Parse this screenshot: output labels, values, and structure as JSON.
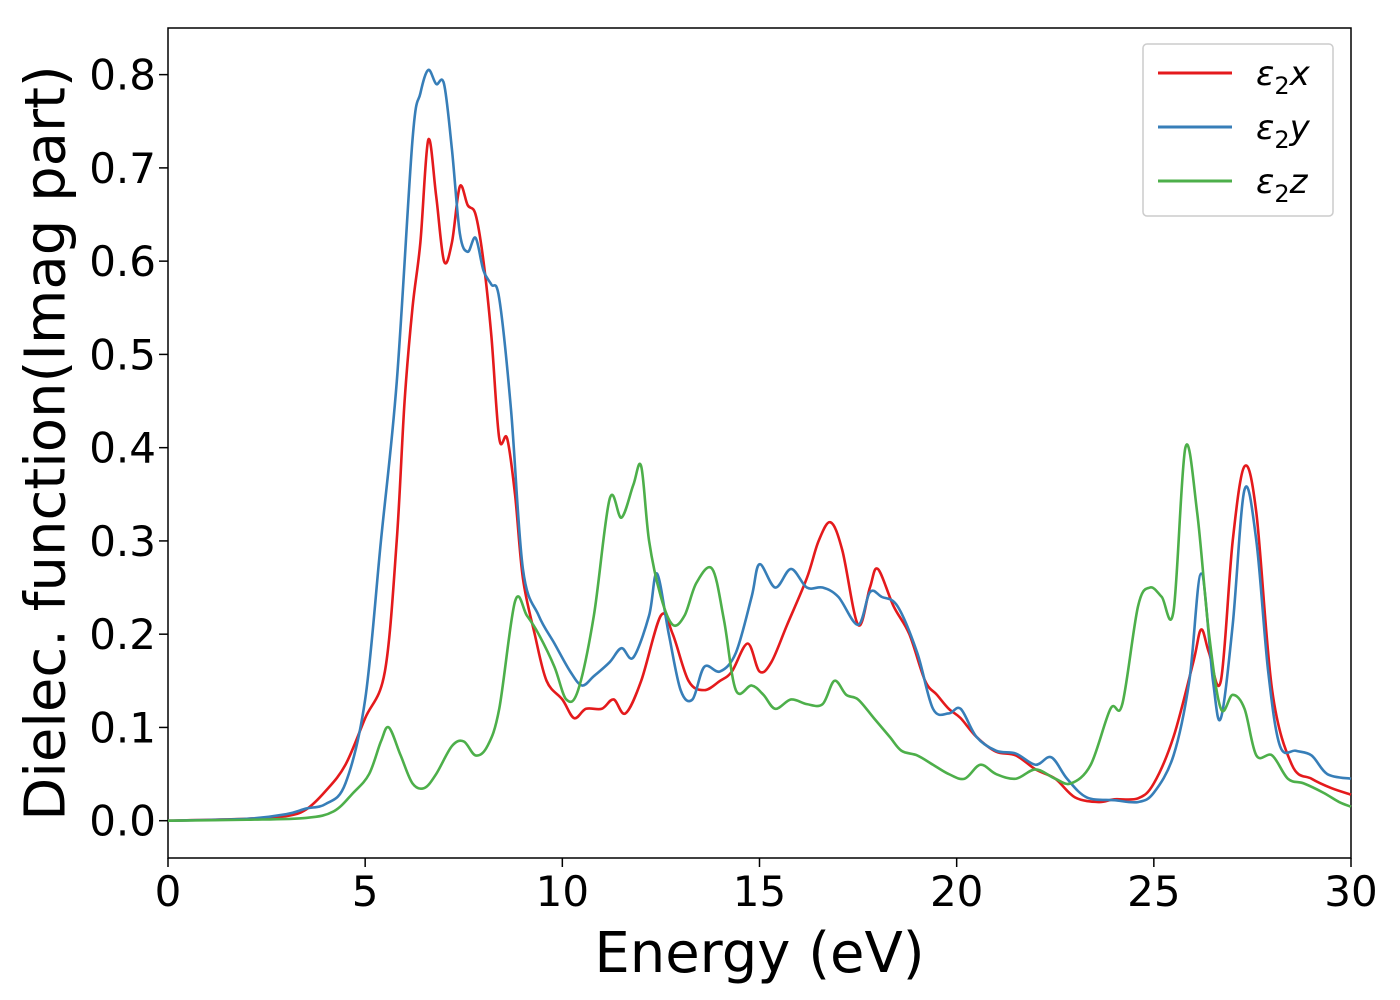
{
  "chart_data": {
    "type": "line",
    "title": "",
    "xlabel": "Energy (eV)",
    "ylabel": "Dielec. function(Imag part)",
    "xlim": [
      0,
      30
    ],
    "ylim": [
      -0.04,
      0.85
    ],
    "xticks": [
      0,
      5,
      10,
      15,
      20,
      25,
      30
    ],
    "yticks": [
      0.0,
      0.1,
      0.2,
      0.3,
      0.4,
      0.5,
      0.6,
      0.7,
      0.8
    ],
    "xtick_labels": [
      "0",
      "5",
      "10",
      "15",
      "20",
      "25",
      "30"
    ],
    "ytick_labels": [
      "0.0",
      "0.1",
      "0.2",
      "0.3",
      "0.4",
      "0.5",
      "0.6",
      "0.7",
      "0.8"
    ],
    "grid": false,
    "legend_position": "top-right",
    "series": [
      {
        "name": "ε2x",
        "symbol": "ε",
        "subscript": "2",
        "suffix": "x",
        "color": "#e41a1c",
        "points": [
          [
            0,
            0
          ],
          [
            2,
            0.002
          ],
          [
            3,
            0.005
          ],
          [
            3.5,
            0.012
          ],
          [
            4,
            0.032
          ],
          [
            4.5,
            0.06
          ],
          [
            5,
            0.11
          ],
          [
            5.5,
            0.16
          ],
          [
            5.8,
            0.3
          ],
          [
            6,
            0.45
          ],
          [
            6.2,
            0.55
          ],
          [
            6.4,
            0.62
          ],
          [
            6.6,
            0.73
          ],
          [
            6.8,
            0.67
          ],
          [
            7,
            0.6
          ],
          [
            7.2,
            0.62
          ],
          [
            7.4,
            0.68
          ],
          [
            7.6,
            0.66
          ],
          [
            7.8,
            0.65
          ],
          [
            8,
            0.6
          ],
          [
            8.2,
            0.52
          ],
          [
            8.4,
            0.41
          ],
          [
            8.6,
            0.41
          ],
          [
            8.8,
            0.35
          ],
          [
            9,
            0.26
          ],
          [
            9.3,
            0.2
          ],
          [
            9.6,
            0.15
          ],
          [
            10,
            0.13
          ],
          [
            10.3,
            0.11
          ],
          [
            10.6,
            0.12
          ],
          [
            11,
            0.12
          ],
          [
            11.3,
            0.13
          ],
          [
            11.6,
            0.115
          ],
          [
            12,
            0.15
          ],
          [
            12.5,
            0.22
          ],
          [
            12.8,
            0.2
          ],
          [
            13.2,
            0.15
          ],
          [
            13.6,
            0.14
          ],
          [
            14,
            0.15
          ],
          [
            14.3,
            0.16
          ],
          [
            14.7,
            0.19
          ],
          [
            15,
            0.16
          ],
          [
            15.3,
            0.17
          ],
          [
            15.7,
            0.21
          ],
          [
            16.2,
            0.26
          ],
          [
            16.5,
            0.3
          ],
          [
            16.8,
            0.32
          ],
          [
            17.1,
            0.29
          ],
          [
            17.5,
            0.21
          ],
          [
            17.8,
            0.25
          ],
          [
            18,
            0.27
          ],
          [
            18.4,
            0.23
          ],
          [
            18.8,
            0.2
          ],
          [
            19.2,
            0.15
          ],
          [
            19.5,
            0.135
          ],
          [
            19.8,
            0.12
          ],
          [
            20.1,
            0.11
          ],
          [
            20.5,
            0.09
          ],
          [
            21,
            0.074
          ],
          [
            21.5,
            0.07
          ],
          [
            22,
            0.055
          ],
          [
            22.5,
            0.045
          ],
          [
            23,
            0.025
          ],
          [
            23.6,
            0.02
          ],
          [
            24,
            0.023
          ],
          [
            24.6,
            0.024
          ],
          [
            25,
            0.04
          ],
          [
            25.5,
            0.09
          ],
          [
            26,
            0.17
          ],
          [
            26.2,
            0.205
          ],
          [
            26.4,
            0.18
          ],
          [
            26.7,
            0.15
          ],
          [
            27,
            0.3
          ],
          [
            27.3,
            0.38
          ],
          [
            27.6,
            0.33
          ],
          [
            28,
            0.14
          ],
          [
            28.5,
            0.06
          ],
          [
            29,
            0.045
          ],
          [
            29.5,
            0.035
          ],
          [
            30,
            0.028
          ]
        ]
      },
      {
        "name": "ε2y",
        "symbol": "ε",
        "subscript": "2",
        "suffix": "y",
        "color": "#377eb8",
        "points": [
          [
            0,
            0
          ],
          [
            2,
            0.002
          ],
          [
            3,
            0.007
          ],
          [
            3.5,
            0.013
          ],
          [
            4,
            0.018
          ],
          [
            4.5,
            0.04
          ],
          [
            5,
            0.13
          ],
          [
            5.4,
            0.3
          ],
          [
            5.8,
            0.47
          ],
          [
            6.2,
            0.73
          ],
          [
            6.4,
            0.78
          ],
          [
            6.6,
            0.805
          ],
          [
            6.8,
            0.79
          ],
          [
            7,
            0.79
          ],
          [
            7.2,
            0.72
          ],
          [
            7.4,
            0.63
          ],
          [
            7.6,
            0.61
          ],
          [
            7.8,
            0.625
          ],
          [
            8,
            0.59
          ],
          [
            8.2,
            0.575
          ],
          [
            8.4,
            0.56
          ],
          [
            8.7,
            0.44
          ],
          [
            9,
            0.27
          ],
          [
            9.4,
            0.22
          ],
          [
            9.8,
            0.19
          ],
          [
            10.2,
            0.16
          ],
          [
            10.5,
            0.145
          ],
          [
            10.8,
            0.155
          ],
          [
            11.2,
            0.17
          ],
          [
            11.5,
            0.185
          ],
          [
            11.8,
            0.175
          ],
          [
            12.2,
            0.22
          ],
          [
            12.4,
            0.265
          ],
          [
            12.7,
            0.2
          ],
          [
            13,
            0.14
          ],
          [
            13.3,
            0.13
          ],
          [
            13.6,
            0.165
          ],
          [
            14,
            0.16
          ],
          [
            14.4,
            0.18
          ],
          [
            14.8,
            0.24
          ],
          [
            15,
            0.275
          ],
          [
            15.4,
            0.25
          ],
          [
            15.8,
            0.27
          ],
          [
            16.2,
            0.25
          ],
          [
            16.6,
            0.25
          ],
          [
            17,
            0.24
          ],
          [
            17.5,
            0.21
          ],
          [
            17.8,
            0.245
          ],
          [
            18.1,
            0.24
          ],
          [
            18.5,
            0.23
          ],
          [
            19,
            0.18
          ],
          [
            19.4,
            0.12
          ],
          [
            19.8,
            0.115
          ],
          [
            20.1,
            0.12
          ],
          [
            20.5,
            0.09
          ],
          [
            21,
            0.075
          ],
          [
            21.5,
            0.072
          ],
          [
            22,
            0.06
          ],
          [
            22.4,
            0.068
          ],
          [
            22.8,
            0.045
          ],
          [
            23.3,
            0.025
          ],
          [
            24,
            0.022
          ],
          [
            24.6,
            0.02
          ],
          [
            25,
            0.03
          ],
          [
            25.5,
            0.07
          ],
          [
            25.9,
            0.15
          ],
          [
            26.2,
            0.265
          ],
          [
            26.5,
            0.15
          ],
          [
            26.7,
            0.11
          ],
          [
            27,
            0.21
          ],
          [
            27.3,
            0.355
          ],
          [
            27.6,
            0.3
          ],
          [
            27.9,
            0.16
          ],
          [
            28.2,
            0.08
          ],
          [
            28.6,
            0.075
          ],
          [
            29,
            0.07
          ],
          [
            29.4,
            0.05
          ],
          [
            30,
            0.045
          ]
        ]
      },
      {
        "name": "ε2z",
        "symbol": "ε",
        "subscript": "2",
        "suffix": "z",
        "color": "#4daf4a",
        "points": [
          [
            0,
            0
          ],
          [
            2,
            0.001
          ],
          [
            3.5,
            0.003
          ],
          [
            4.2,
            0.01
          ],
          [
            4.7,
            0.03
          ],
          [
            5.1,
            0.05
          ],
          [
            5.4,
            0.085
          ],
          [
            5.6,
            0.1
          ],
          [
            5.9,
            0.07
          ],
          [
            6.2,
            0.04
          ],
          [
            6.5,
            0.035
          ],
          [
            6.8,
            0.05
          ],
          [
            7.2,
            0.08
          ],
          [
            7.5,
            0.085
          ],
          [
            7.8,
            0.07
          ],
          [
            8.1,
            0.08
          ],
          [
            8.4,
            0.12
          ],
          [
            8.8,
            0.235
          ],
          [
            9.1,
            0.22
          ],
          [
            9.4,
            0.2
          ],
          [
            9.8,
            0.165
          ],
          [
            10.1,
            0.13
          ],
          [
            10.4,
            0.14
          ],
          [
            10.8,
            0.22
          ],
          [
            11.2,
            0.345
          ],
          [
            11.5,
            0.325
          ],
          [
            11.8,
            0.36
          ],
          [
            12,
            0.38
          ],
          [
            12.2,
            0.3
          ],
          [
            12.5,
            0.24
          ],
          [
            12.8,
            0.21
          ],
          [
            13.1,
            0.22
          ],
          [
            13.4,
            0.255
          ],
          [
            13.8,
            0.27
          ],
          [
            14.1,
            0.215
          ],
          [
            14.4,
            0.14
          ],
          [
            14.8,
            0.145
          ],
          [
            15.1,
            0.135
          ],
          [
            15.4,
            0.12
          ],
          [
            15.8,
            0.13
          ],
          [
            16.2,
            0.125
          ],
          [
            16.6,
            0.125
          ],
          [
            16.9,
            0.15
          ],
          [
            17.2,
            0.135
          ],
          [
            17.5,
            0.13
          ],
          [
            17.9,
            0.11
          ],
          [
            18.3,
            0.09
          ],
          [
            18.6,
            0.075
          ],
          [
            19,
            0.07
          ],
          [
            19.4,
            0.06
          ],
          [
            19.8,
            0.05
          ],
          [
            20.2,
            0.045
          ],
          [
            20.6,
            0.06
          ],
          [
            21,
            0.05
          ],
          [
            21.5,
            0.045
          ],
          [
            22,
            0.055
          ],
          [
            22.5,
            0.045
          ],
          [
            22.9,
            0.04
          ],
          [
            23.4,
            0.06
          ],
          [
            23.9,
            0.12
          ],
          [
            24.2,
            0.125
          ],
          [
            24.6,
            0.23
          ],
          [
            24.9,
            0.25
          ],
          [
            25.2,
            0.24
          ],
          [
            25.5,
            0.225
          ],
          [
            25.8,
            0.4
          ],
          [
            26.1,
            0.33
          ],
          [
            26.4,
            0.2
          ],
          [
            26.7,
            0.12
          ],
          [
            27,
            0.135
          ],
          [
            27.3,
            0.12
          ],
          [
            27.6,
            0.07
          ],
          [
            28,
            0.07
          ],
          [
            28.4,
            0.045
          ],
          [
            28.8,
            0.04
          ],
          [
            29.3,
            0.03
          ],
          [
            29.7,
            0.02
          ],
          [
            30,
            0.015
          ]
        ]
      }
    ]
  }
}
